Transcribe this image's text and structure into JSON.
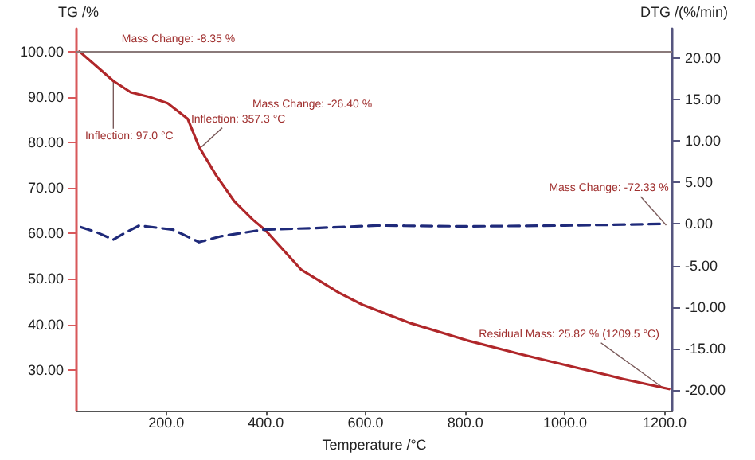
{
  "chart_data": {
    "type": "line",
    "xlabel": "Temperature /°C",
    "ylabel": "TG /%",
    "y2label": "DTG /(%/min)",
    "xlim": [
      20,
      1215
    ],
    "xticks": [
      {
        "value": 200,
        "label": "200.0"
      },
      {
        "value": 400,
        "label": "400.0"
      },
      {
        "value": 600,
        "label": "600.0"
      },
      {
        "value": 800,
        "label": "800.0"
      },
      {
        "value": 1000,
        "label": "1000.0"
      },
      {
        "value": 1200,
        "label": "1200.0"
      }
    ],
    "ylim": [
      21,
      105
    ],
    "yticks": [
      {
        "value": 30,
        "label": "30.00"
      },
      {
        "value": 40,
        "label": "40.00"
      },
      {
        "value": 50,
        "label": "50.00"
      },
      {
        "value": 60,
        "label": "60.00"
      },
      {
        "value": 70,
        "label": "70.00"
      },
      {
        "value": 80,
        "label": "80.00"
      },
      {
        "value": 90,
        "label": "90.00"
      },
      {
        "value": 100,
        "label": "100.00"
      }
    ],
    "y2lim": [
      -22.5,
      23.5
    ],
    "y2ticks": [
      {
        "value": -20,
        "label": "-20.00"
      },
      {
        "value": -15,
        "label": "-15.00"
      },
      {
        "value": -10,
        "label": "-10.00"
      },
      {
        "value": -5,
        "label": "-5.00"
      },
      {
        "value": 0,
        "label": "0.00"
      },
      {
        "value": 5,
        "label": "5.00"
      },
      {
        "value": 10,
        "label": "10.00"
      },
      {
        "value": 15,
        "label": "15.00"
      },
      {
        "value": 20,
        "label": "20.00"
      }
    ],
    "grid": false,
    "marker": "none",
    "series": [
      {
        "color": "#b0272a",
        "line_style": "solid",
        "x": [
          26,
          51,
          94,
          129,
          166,
          203,
          243,
          266,
          300,
          337,
          374,
          400,
          471,
          546,
          594,
          689,
          803,
          909,
          1003,
          1117,
          1209
        ],
        "values": [
          100,
          97.6,
          93.5,
          91,
          90,
          88.6,
          85.2,
          79,
          72.8,
          67,
          63,
          60.6,
          52,
          47,
          44.3,
          40.3,
          36.5,
          33.5,
          31,
          28,
          25.8
        ]
      },
      {
        "color": "#1f2a7a",
        "line_style": "dashed",
        "axis": "y2",
        "x": [
          29,
          60,
          94,
          120,
          146,
          214,
          266,
          309,
          394,
          500,
          623,
          800,
          1000,
          1203
        ],
        "values": [
          -0.4,
          -1.0,
          -1.9,
          -1.0,
          -0.2,
          -0.7,
          -2.2,
          -1.5,
          -0.7,
          -0.5,
          -0.2,
          -0.3,
          -0.2,
          0
        ]
      }
    ],
    "ref_lines": [
      {
        "axis": "y",
        "value": 100,
        "label": null,
        "color": "#8a7a7a"
      }
    ],
    "annotations": [
      "Mass Change: -8.35 %",
      {
        "text": "Inflection: 97.0 °C",
        "x": 94,
        "y": 93.5
      },
      {
        "text": "Inflection: 357.3 °C",
        "x": 271,
        "y": 79
      },
      "Mass Change: -26.40 %",
      {
        "text": "Mass Change: -72.33 %",
        "x": 1203,
        "y": 61.8
      },
      {
        "text": "Residual Mass: 25.82 % (1209.5 °C)",
        "x": 1200,
        "y": 25.8
      }
    ]
  }
}
